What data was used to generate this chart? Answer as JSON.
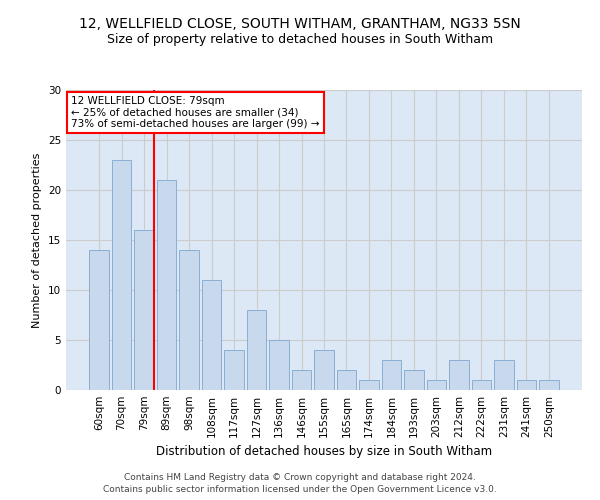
{
  "title1": "12, WELLFIELD CLOSE, SOUTH WITHAM, GRANTHAM, NG33 5SN",
  "title2": "Size of property relative to detached houses in South Witham",
  "xlabel": "Distribution of detached houses by size in South Witham",
  "ylabel": "Number of detached properties",
  "categories": [
    "60sqm",
    "70sqm",
    "79sqm",
    "89sqm",
    "98sqm",
    "108sqm",
    "117sqm",
    "127sqm",
    "136sqm",
    "146sqm",
    "155sqm",
    "165sqm",
    "174sqm",
    "184sqm",
    "193sqm",
    "203sqm",
    "212sqm",
    "222sqm",
    "231sqm",
    "241sqm",
    "250sqm"
  ],
  "values": [
    14,
    23,
    16,
    21,
    14,
    11,
    4,
    8,
    5,
    2,
    4,
    2,
    1,
    3,
    2,
    1,
    3,
    1,
    3,
    1,
    1
  ],
  "bar_color": "#c9d9ed",
  "bar_edge_color": "#8aaed4",
  "highlight_bar_index": 2,
  "annotation_title": "12 WELLFIELD CLOSE: 79sqm",
  "annotation_line1": "← 25% of detached houses are smaller (34)",
  "annotation_line2": "73% of semi-detached houses are larger (99) →",
  "annotation_box_color": "white",
  "annotation_box_edge": "red",
  "vline_color": "red",
  "footer1": "Contains HM Land Registry data © Crown copyright and database right 2024.",
  "footer2": "Contains public sector information licensed under the Open Government Licence v3.0.",
  "ylim": [
    0,
    30
  ],
  "yticks": [
    0,
    5,
    10,
    15,
    20,
    25,
    30
  ],
  "grid_color": "#cccccc",
  "bg_color": "#dce8f5",
  "title1_fontsize": 10,
  "title2_fontsize": 9,
  "xlabel_fontsize": 8.5,
  "ylabel_fontsize": 8,
  "tick_fontsize": 7.5,
  "footer_fontsize": 6.5,
  "ann_fontsize": 7.5
}
